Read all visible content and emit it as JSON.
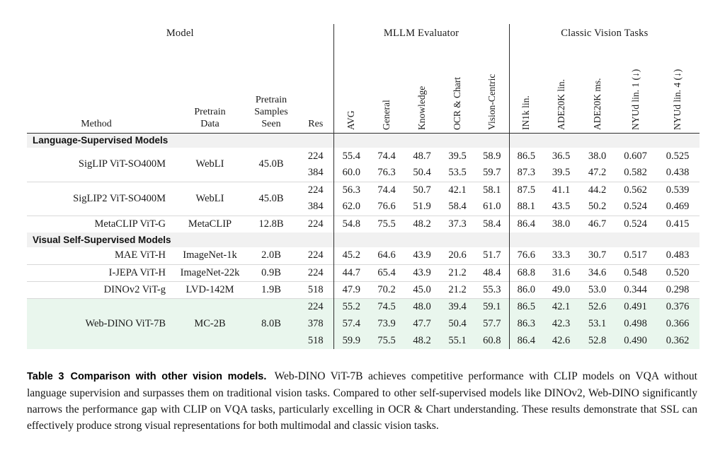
{
  "colors": {
    "section_bg": "#f1f1f1",
    "highlight_bg": "#e9f6ed",
    "rule_color": "#2f2f2f",
    "separator_color": "#d8d8d8",
    "text_color": "#1a1a1a"
  },
  "table": {
    "group_headers": [
      {
        "label": "Model"
      },
      {
        "label": "MLLM Evaluator"
      },
      {
        "label": "Classic Vision Tasks"
      }
    ],
    "left_columns": [
      "Method",
      "Pretrain Data",
      "Pretrain Samples Seen",
      "Res"
    ],
    "metric_columns": [
      "AVG",
      "General",
      "Knowledge",
      "OCR & Chart",
      "Vision-Centric",
      "IN1k lin.",
      "ADE20K lin.",
      "ADE20K ms.",
      "NYUd lin. 1 (↓)",
      "NYUd lin. 4 (↓)"
    ],
    "sections": [
      {
        "title": "Language-Supervised Models",
        "models": [
          {
            "method": "SigLIP ViT-SO400M",
            "pretrain_data": "WebLI",
            "pretrain_samples": "45.0B",
            "highlight": false,
            "rows": [
              {
                "res": "224",
                "values": [
                  "55.4",
                  "74.4",
                  "48.7",
                  "39.5",
                  "58.9",
                  "86.5",
                  "36.5",
                  "38.0",
                  "0.607",
                  "0.525"
                ]
              },
              {
                "res": "384",
                "values": [
                  "60.0",
                  "76.3",
                  "50.4",
                  "53.5",
                  "59.7",
                  "87.3",
                  "39.5",
                  "47.2",
                  "0.582",
                  "0.438"
                ]
              }
            ]
          },
          {
            "method": "SigLIP2 ViT-SO400M",
            "pretrain_data": "WebLI",
            "pretrain_samples": "45.0B",
            "highlight": false,
            "rows": [
              {
                "res": "224",
                "values": [
                  "56.3",
                  "74.4",
                  "50.7",
                  "42.1",
                  "58.1",
                  "87.5",
                  "41.1",
                  "44.2",
                  "0.562",
                  "0.539"
                ]
              },
              {
                "res": "384",
                "values": [
                  "62.0",
                  "76.6",
                  "51.9",
                  "58.4",
                  "61.0",
                  "88.1",
                  "43.5",
                  "50.2",
                  "0.524",
                  "0.469"
                ]
              }
            ]
          },
          {
            "method": "MetaCLIP ViT-G",
            "pretrain_data": "MetaCLIP",
            "pretrain_samples": "12.8B",
            "highlight": false,
            "rows": [
              {
                "res": "224",
                "values": [
                  "54.8",
                  "75.5",
                  "48.2",
                  "37.3",
                  "58.4",
                  "86.4",
                  "38.0",
                  "46.7",
                  "0.524",
                  "0.415"
                ]
              }
            ]
          }
        ]
      },
      {
        "title": "Visual Self-Supervised Models",
        "models": [
          {
            "method": "MAE ViT-H",
            "pretrain_data": "ImageNet-1k",
            "pretrain_samples": "2.0B",
            "highlight": false,
            "rows": [
              {
                "res": "224",
                "values": [
                  "45.2",
                  "64.6",
                  "43.9",
                  "20.6",
                  "51.7",
                  "76.6",
                  "33.3",
                  "30.7",
                  "0.517",
                  "0.483"
                ]
              }
            ]
          },
          {
            "method": "I-JEPA ViT-H",
            "pretrain_data": "ImageNet-22k",
            "pretrain_samples": "0.9B",
            "highlight": false,
            "rows": [
              {
                "res": "224",
                "values": [
                  "44.7",
                  "65.4",
                  "43.9",
                  "21.2",
                  "48.4",
                  "68.8",
                  "31.6",
                  "34.6",
                  "0.548",
                  "0.520"
                ]
              }
            ]
          },
          {
            "method": "DINOv2 ViT-g",
            "pretrain_data": "LVD-142M",
            "pretrain_samples": "1.9B",
            "highlight": false,
            "rows": [
              {
                "res": "518",
                "values": [
                  "47.9",
                  "70.2",
                  "45.0",
                  "21.2",
                  "55.3",
                  "86.0",
                  "49.0",
                  "53.0",
                  "0.344",
                  "0.298"
                ]
              }
            ]
          },
          {
            "method": "Web-DINO ViT-7B",
            "pretrain_data": "MC-2B",
            "pretrain_samples": "8.0B",
            "highlight": true,
            "rows": [
              {
                "res": "224",
                "values": [
                  "55.2",
                  "74.5",
                  "48.0",
                  "39.4",
                  "59.1",
                  "86.5",
                  "42.1",
                  "52.6",
                  "0.491",
                  "0.376"
                ]
              },
              {
                "res": "378",
                "values": [
                  "57.4",
                  "73.9",
                  "47.7",
                  "50.4",
                  "57.7",
                  "86.3",
                  "42.3",
                  "53.1",
                  "0.498",
                  "0.366"
                ]
              },
              {
                "res": "518",
                "values": [
                  "59.9",
                  "75.5",
                  "48.2",
                  "55.1",
                  "60.8",
                  "86.4",
                  "42.6",
                  "52.8",
                  "0.490",
                  "0.362"
                ]
              }
            ]
          }
        ]
      }
    ]
  },
  "caption": {
    "label": "Table 3",
    "title": "Comparison with other vision models.",
    "body": "Web-DINO ViT-7B achieves competitive performance with CLIP models on VQA without language supervision and surpasses them on traditional vision tasks. Compared to other self-supervised models like DINOv2, Web-DINO significantly narrows the performance gap with CLIP on VQA tasks, particularly excelling in OCR & Chart understanding. These results demonstrate that SSL can effectively produce strong visual representations for both multimodal and classic vision tasks."
  }
}
